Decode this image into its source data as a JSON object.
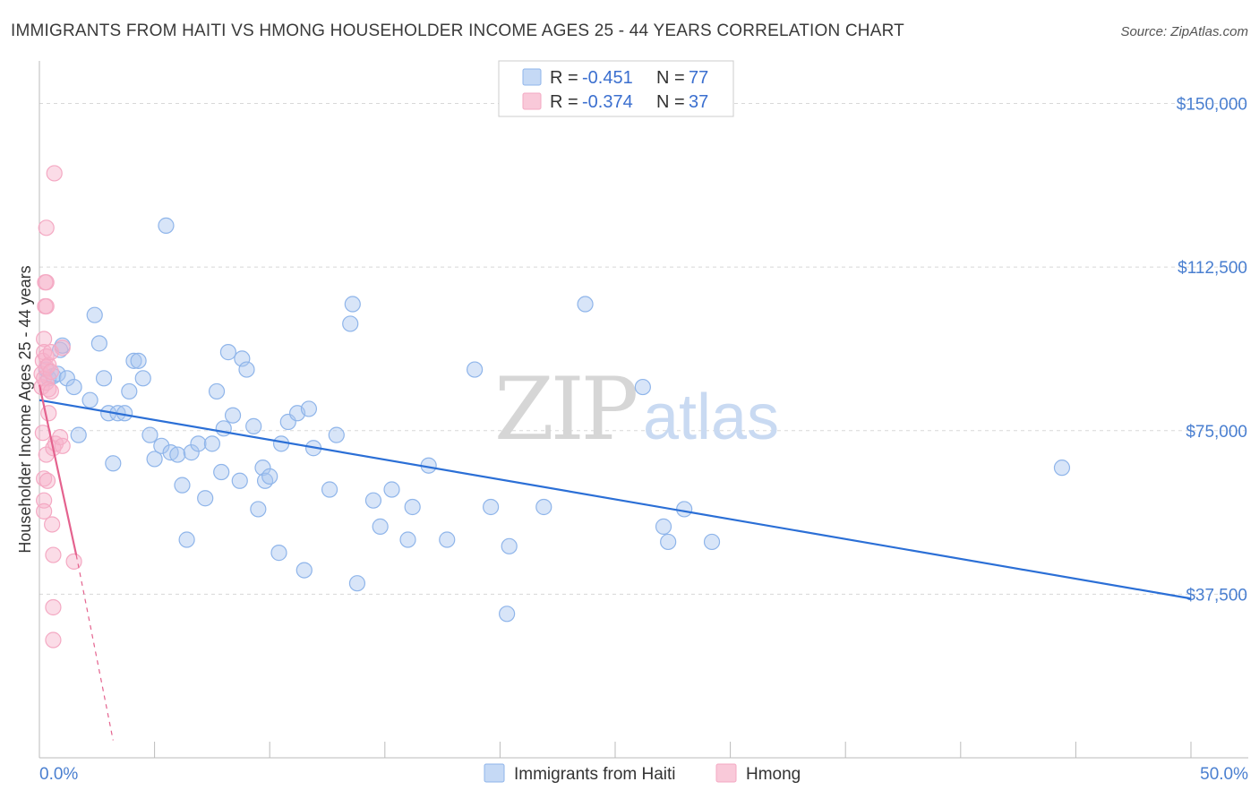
{
  "chart_data": {
    "type": "scatter",
    "title": "IMMIGRANTS FROM HAITI VS HMONG HOUSEHOLDER INCOME AGES 25 - 44 YEARS CORRELATION CHART",
    "source": "Source: ZipAtlas.com",
    "ylabel": "Householder Income Ages 25 - 44 years",
    "xlim": [
      0,
      50
    ],
    "ylim": [
      0,
      157500
    ],
    "y_ticks": [
      {
        "value": 37500,
        "label": "$37,500"
      },
      {
        "value": 75000,
        "label": "$75,000"
      },
      {
        "value": 112500,
        "label": "$112,500"
      },
      {
        "value": 150000,
        "label": "$150,000"
      }
    ],
    "x_tick_labels": {
      "min": "0.0%",
      "max": "50.0%"
    },
    "watermark": {
      "zip": "ZIP",
      "atlas": "atlas"
    },
    "legend": {
      "r_label": "R =",
      "n_label": "N =",
      "entries": [
        {
          "r": "-0.451",
          "n": "77"
        },
        {
          "r": "-0.374",
          "n": "37"
        }
      ]
    },
    "series": [
      {
        "name": "Immigrants from Haiti",
        "color": "#8fb5ea",
        "line_color": "#2b6fd6",
        "trend": {
          "x0": 0,
          "y0": 82000,
          "x1": 50,
          "y1": 36500
        },
        "points": [
          [
            0.3,
            89
          ],
          [
            0.4,
            87
          ],
          [
            0.6,
            87.5
          ],
          [
            0.8,
            88
          ],
          [
            0.9,
            93.5
          ],
          [
            1.0,
            94.5
          ],
          [
            1.2,
            87
          ],
          [
            1.5,
            85
          ],
          [
            1.7,
            74
          ],
          [
            2.2,
            82
          ],
          [
            2.4,
            101.5
          ],
          [
            2.6,
            95
          ],
          [
            2.8,
            87
          ],
          [
            3.0,
            79
          ],
          [
            3.2,
            67.5
          ],
          [
            3.4,
            79
          ],
          [
            3.7,
            79
          ],
          [
            3.9,
            84
          ],
          [
            4.1,
            91
          ],
          [
            4.3,
            91
          ],
          [
            4.5,
            87
          ],
          [
            4.8,
            74
          ],
          [
            5.0,
            68.5
          ],
          [
            5.3,
            71.5
          ],
          [
            5.5,
            122
          ],
          [
            5.7,
            70
          ],
          [
            6.0,
            69.5
          ],
          [
            6.2,
            62.5
          ],
          [
            6.4,
            50
          ],
          [
            6.6,
            70
          ],
          [
            6.9,
            72
          ],
          [
            7.2,
            59.5
          ],
          [
            7.5,
            72
          ],
          [
            7.7,
            84
          ],
          [
            7.9,
            65.5
          ],
          [
            8.0,
            75.5
          ],
          [
            8.2,
            93
          ],
          [
            8.4,
            78.5
          ],
          [
            8.7,
            63.5
          ],
          [
            8.8,
            91.5
          ],
          [
            9.0,
            89
          ],
          [
            9.3,
            76
          ],
          [
            9.5,
            57
          ],
          [
            9.7,
            66.5
          ],
          [
            9.8,
            63.5
          ],
          [
            10.0,
            64.5
          ],
          [
            10.4,
            47
          ],
          [
            10.5,
            72
          ],
          [
            10.8,
            77
          ],
          [
            11.2,
            79
          ],
          [
            11.5,
            43
          ],
          [
            11.7,
            80
          ],
          [
            11.9,
            71
          ],
          [
            12.6,
            61.5
          ],
          [
            12.9,
            74
          ],
          [
            13.5,
            99.5
          ],
          [
            13.6,
            104
          ],
          [
            13.8,
            40
          ],
          [
            14.5,
            59
          ],
          [
            14.8,
            53
          ],
          [
            15.3,
            61.5
          ],
          [
            16.0,
            50
          ],
          [
            16.2,
            57.5
          ],
          [
            16.9,
            67
          ],
          [
            17.7,
            50
          ],
          [
            18.9,
            89
          ],
          [
            19.6,
            57.5
          ],
          [
            20.3,
            33
          ],
          [
            20.4,
            48.5
          ],
          [
            21.9,
            57.5
          ],
          [
            23.7,
            104
          ],
          [
            26.2,
            85
          ],
          [
            27.1,
            53
          ],
          [
            27.3,
            49.5
          ],
          [
            28.0,
            57
          ],
          [
            29.2,
            49.5
          ],
          [
            44.4,
            66.5
          ]
        ]
      },
      {
        "name": "Hmong",
        "color": "#f4a9c3",
        "line_color": "#e4628e",
        "trend": {
          "x0": 0,
          "y0": 85500,
          "x1": 1.6,
          "y1": 46500
        },
        "trend_dashed": {
          "x0": 1.6,
          "y0": 46500,
          "x1": 3.2,
          "y1": 4000
        },
        "points": [
          [
            0.1,
            88
          ],
          [
            0.1,
            85
          ],
          [
            0.15,
            91
          ],
          [
            0.15,
            74.5
          ],
          [
            0.2,
            96
          ],
          [
            0.2,
            93
          ],
          [
            0.2,
            87
          ],
          [
            0.2,
            64
          ],
          [
            0.2,
            59
          ],
          [
            0.2,
            56.5
          ],
          [
            0.25,
            109
          ],
          [
            0.25,
            103.5
          ],
          [
            0.3,
            121.5
          ],
          [
            0.3,
            109
          ],
          [
            0.3,
            103.5
          ],
          [
            0.3,
            92
          ],
          [
            0.3,
            89.5
          ],
          [
            0.3,
            86
          ],
          [
            0.3,
            69.5
          ],
          [
            0.35,
            63.5
          ],
          [
            0.4,
            90
          ],
          [
            0.4,
            84.5
          ],
          [
            0.4,
            79
          ],
          [
            0.5,
            93
          ],
          [
            0.5,
            88.5
          ],
          [
            0.5,
            84
          ],
          [
            0.55,
            53.5
          ],
          [
            0.6,
            71
          ],
          [
            0.6,
            46.5
          ],
          [
            0.6,
            34.5
          ],
          [
            0.6,
            27
          ],
          [
            0.65,
            134
          ],
          [
            0.7,
            72
          ],
          [
            0.9,
            73.5
          ],
          [
            1.0,
            71.5
          ],
          [
            1.0,
            94
          ],
          [
            1.5,
            45
          ]
        ]
      }
    ],
    "bottom_legend": [
      "Immigrants from Haiti",
      "Hmong"
    ]
  }
}
